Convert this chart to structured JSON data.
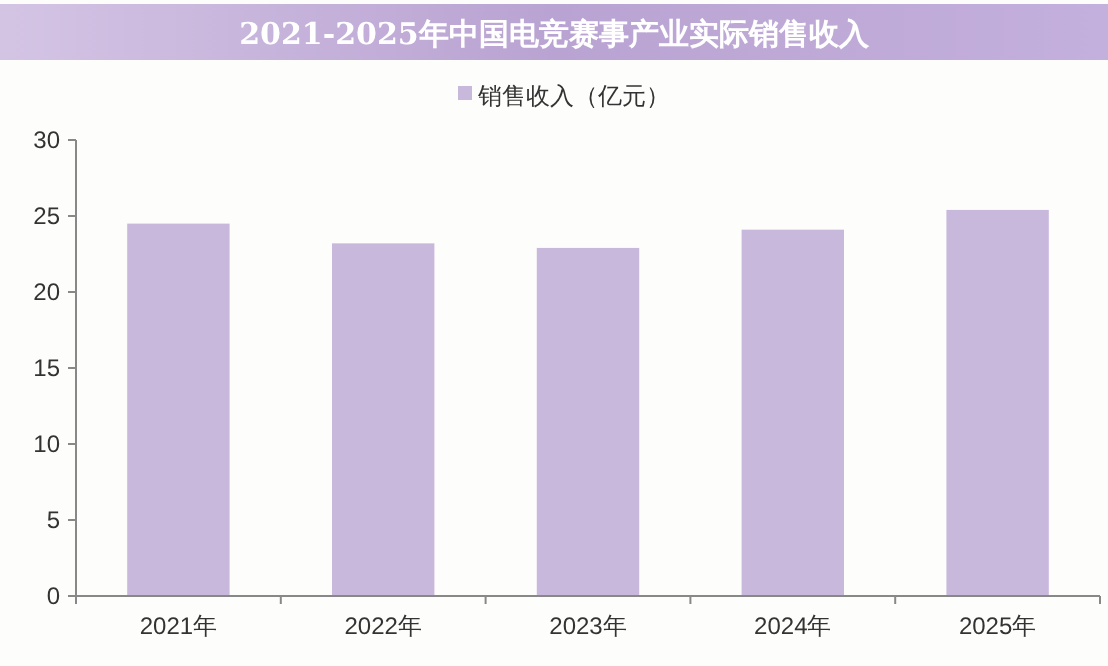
{
  "chart_data": {
    "type": "bar",
    "title": "2021-2025年中国电竞赛事产业实际销售收入",
    "categories": [
      "2021年",
      "2022年",
      "2023年",
      "2024年",
      "2025年"
    ],
    "series": [
      {
        "name": "销售收入（亿元）",
        "color": "#c8b9dc",
        "values": [
          24.5,
          23.2,
          22.9,
          24.1,
          25.4
        ]
      }
    ],
    "ylim": [
      0,
      30
    ],
    "yticks": [
      0,
      5,
      10,
      15,
      20,
      25,
      30
    ],
    "grid": false,
    "legend": "top"
  }
}
